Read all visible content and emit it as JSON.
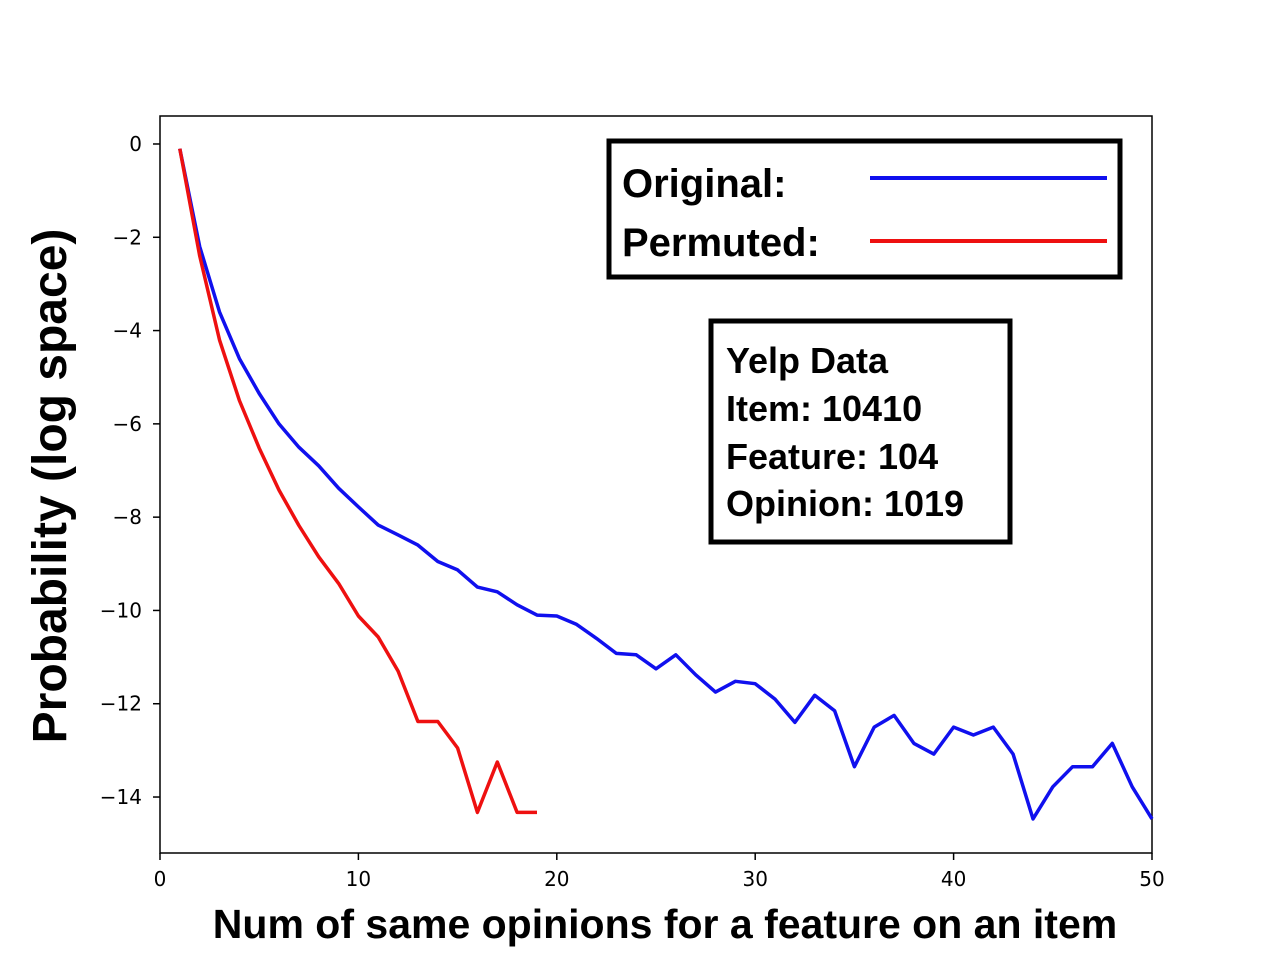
{
  "chart_data": {
    "type": "line",
    "title": "",
    "xlabel": "Num of same opinions for a feature on an item",
    "ylabel": "Probability (log space)",
    "xlim": [
      0,
      50
    ],
    "ylim": [
      -15.2,
      0.6
    ],
    "xticks": [
      0,
      10,
      20,
      30,
      40,
      50
    ],
    "xtick_labels": [
      "0",
      "10",
      "20",
      "30",
      "40",
      "50"
    ],
    "yticks": [
      0,
      -2,
      -4,
      -6,
      -8,
      -10,
      -12,
      -14
    ],
    "ytick_labels": [
      "0",
      "−2",
      "−4",
      "−6",
      "−8",
      "−10",
      "−12",
      "−14"
    ],
    "grid": false,
    "legend_position": "top-right",
    "series": [
      {
        "name": "Original:",
        "color": "#1010ee",
        "x": [
          1,
          2,
          3,
          4,
          5,
          6,
          7,
          8,
          9,
          10,
          11,
          12,
          13,
          14,
          15,
          16,
          17,
          18,
          19,
          20,
          21,
          22,
          23,
          24,
          25,
          26,
          27,
          28,
          29,
          30,
          31,
          32,
          33,
          34,
          35,
          36,
          37,
          38,
          39,
          40,
          41,
          42,
          43,
          44,
          45,
          46,
          47,
          48,
          49,
          50
        ],
        "y": [
          -0.1,
          -2.2,
          -3.6,
          -4.6,
          -5.35,
          -6.0,
          -6.5,
          -6.9,
          -7.38,
          -7.78,
          -8.17,
          -8.38,
          -8.6,
          -8.95,
          -9.13,
          -9.5,
          -9.6,
          -9.88,
          -10.1,
          -10.12,
          -10.3,
          -10.6,
          -10.92,
          -10.95,
          -11.25,
          -10.95,
          -11.38,
          -11.75,
          -11.52,
          -11.57,
          -11.9,
          -12.4,
          -11.82,
          -12.15,
          -13.35,
          -12.5,
          -12.25,
          -12.85,
          -13.08,
          -12.5,
          -12.67,
          -12.5,
          -13.08,
          -14.47,
          -13.78,
          -13.35,
          -13.35,
          -12.85,
          -13.78,
          -14.47
        ]
      },
      {
        "name": "Permuted:",
        "color": "#ee1010",
        "x": [
          1,
          2,
          3,
          4,
          5,
          6,
          7,
          8,
          9,
          10,
          11,
          12,
          13,
          14,
          15,
          16,
          17,
          18,
          19
        ],
        "y": [
          -0.1,
          -2.4,
          -4.2,
          -5.5,
          -6.52,
          -7.42,
          -8.18,
          -8.85,
          -9.42,
          -10.12,
          -10.57,
          -11.3,
          -12.38,
          -12.38,
          -12.95,
          -14.33,
          -13.25,
          -14.33,
          -14.33
        ]
      }
    ],
    "annotation": {
      "lines": [
        "Yelp Data",
        "Item: 10410",
        "Feature: 104",
        "Opinion: 1019"
      ],
      "position": "upper-right"
    }
  }
}
